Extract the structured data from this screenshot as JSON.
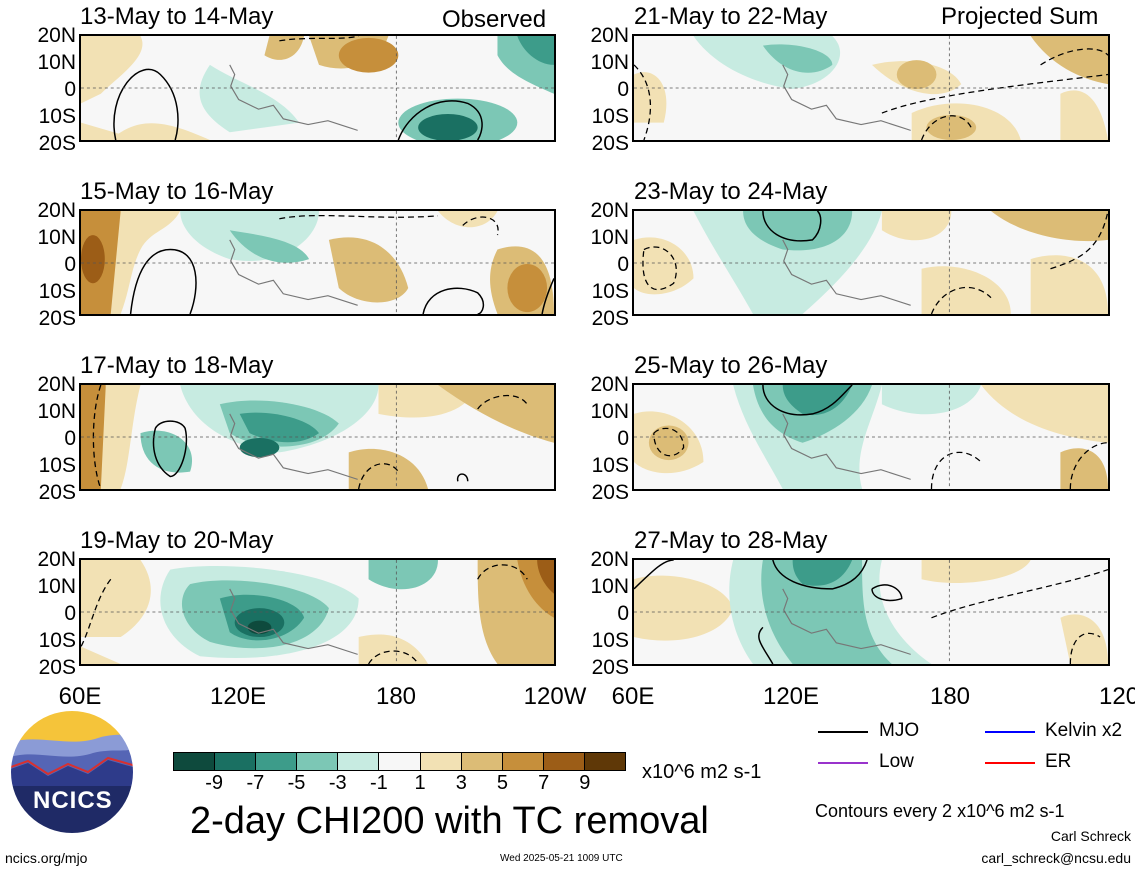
{
  "header": {
    "observed_label": "Observed",
    "projected_label": "Projected Sum"
  },
  "panels_left": [
    {
      "title": "13-May to 14-May"
    },
    {
      "title": "15-May to 16-May"
    },
    {
      "title": "17-May to 18-May"
    },
    {
      "title": "19-May to 20-May"
    }
  ],
  "panels_right": [
    {
      "title": "21-May to 22-May"
    },
    {
      "title": "23-May to 24-May"
    },
    {
      "title": "25-May to 26-May"
    },
    {
      "title": "27-May to 28-May"
    }
  ],
  "lat_labels": [
    "20N",
    "10N",
    "0",
    "10S",
    "20S"
  ],
  "lon_labels": [
    "60E",
    "120E",
    "180",
    "120W"
  ],
  "colorbar": {
    "ticks": [
      "-9",
      "-7",
      "-5",
      "-3",
      "-1",
      "1",
      "3",
      "5",
      "7",
      "9"
    ],
    "units": "x10^6 m2 s-1",
    "colors": [
      "#0e4a3d",
      "#1a7062",
      "#3d9c8a",
      "#7cc7b5",
      "#c7ebe1",
      "#f7f7f7",
      "#f2e1b4",
      "#dcbc76",
      "#c68f3b",
      "#9c5d17",
      "#5f3807"
    ]
  },
  "title": "2-day CHI200 with TC removal",
  "legend": {
    "items": [
      {
        "label": "MJO",
        "color": "#000000"
      },
      {
        "label": "Kelvin x2",
        "color": "#0000ff"
      },
      {
        "label": "Low",
        "color": "#9933cc"
      },
      {
        "label": "ER",
        "color": "#ff0000"
      }
    ],
    "contours_note": "Contours every 2 x10^6 m2 s-1"
  },
  "footer": {
    "logo_text": "NCICS",
    "url": "ncics.org/mjo",
    "timestamp": "Wed 2025-05-21 1009 UTC",
    "author": "Carl Schreck",
    "email": "carl_schreck@ncsu.edu"
  }
}
